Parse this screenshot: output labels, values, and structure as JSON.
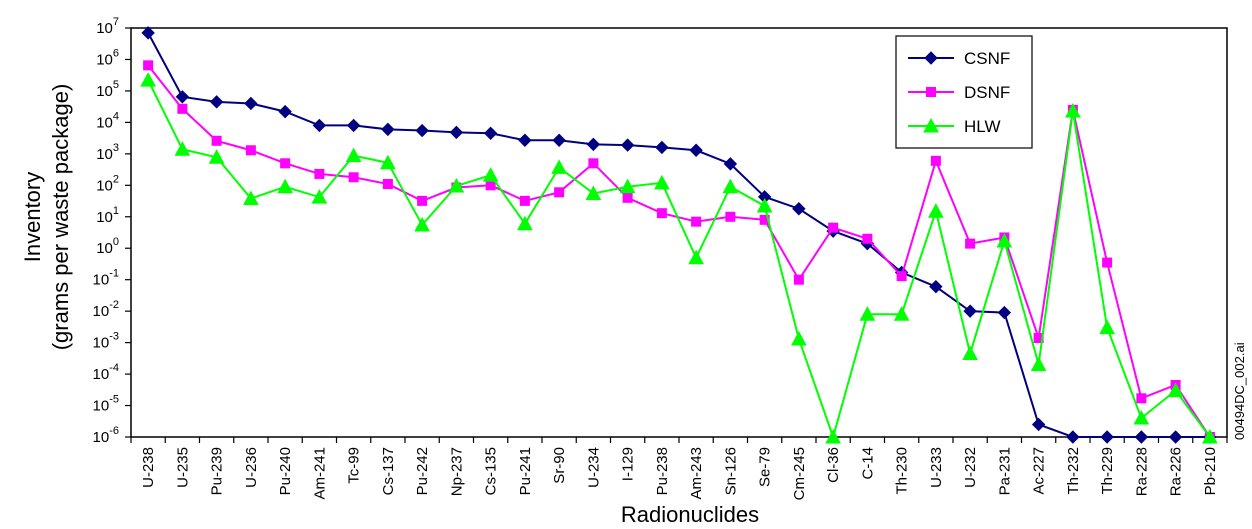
{
  "chart_data": {
    "type": "line",
    "title": "",
    "xlabel": "Radionuclides",
    "ylabel_line1": "Inventory",
    "ylabel_line2": "(grams per waste package)",
    "y_scale": "log",
    "ylim": [
      1e-06,
      10000000.0
    ],
    "y_ticks": [
      {
        "base": "10",
        "exp": "7"
      },
      {
        "base": "10",
        "exp": "6"
      },
      {
        "base": "10",
        "exp": "5"
      },
      {
        "base": "10",
        "exp": "4"
      },
      {
        "base": "10",
        "exp": "3"
      },
      {
        "base": "10",
        "exp": "2"
      },
      {
        "base": "10",
        "exp": "1"
      },
      {
        "base": "10",
        "exp": "0"
      },
      {
        "base": "10",
        "exp": "-1"
      },
      {
        "base": "10",
        "exp": "-2"
      },
      {
        "base": "10",
        "exp": "-3"
      },
      {
        "base": "10",
        "exp": "-4"
      },
      {
        "base": "10",
        "exp": "-5"
      },
      {
        "base": "10",
        "exp": "-6"
      }
    ],
    "categories": [
      "U-238",
      "U-235",
      "Pu-239",
      "U-236",
      "Pu-240",
      "Am-241",
      "Tc-99",
      "Cs-137",
      "Pu-242",
      "Np-237",
      "Cs-135",
      "Pu-241",
      "Sr-90",
      "U-234",
      "I-129",
      "Pu-238",
      "Am-243",
      "Sn-126",
      "Se-79",
      "Cm-245",
      "Cl-36",
      "C-14",
      "Th-230",
      "U-233",
      "U-232",
      "Pa-231",
      "Ac-227",
      "Th-232",
      "Th-229",
      "Ra-228",
      "Ra-226",
      "Pb-210"
    ],
    "legend_position": "top-right",
    "series": [
      {
        "name": "CSNF",
        "color": "#000080",
        "marker": "diamond",
        "values": [
          7000000.0,
          65000.0,
          45000.0,
          40000.0,
          22000.0,
          8000.0,
          8000.0,
          6000.0,
          5500.0,
          4800.0,
          4500.0,
          2700.0,
          2700.0,
          2000.0,
          1900.0,
          1600.0,
          1300.0,
          480,
          43,
          18,
          3.5,
          1.4,
          0.17,
          0.06,
          0.01,
          0.009,
          2.5e-06,
          1e-06,
          1e-06,
          1e-06,
          1e-06,
          1e-06
        ]
      },
      {
        "name": "DSNF",
        "color": "#ff00ff",
        "marker": "square",
        "values": [
          650000.0,
          27000.0,
          2600.0,
          1300.0,
          500,
          230,
          180,
          110,
          32,
          85,
          100,
          32,
          60,
          500,
          40,
          13,
          7,
          10,
          8,
          0.1,
          4.5,
          2,
          0.13,
          600,
          1.4,
          2.2,
          0.0014,
          25000.0,
          0.35,
          1.7e-05,
          4.5e-05,
          1e-06
        ]
      },
      {
        "name": "HLW",
        "color": "#00ff00",
        "marker": "triangle",
        "values": [
          220000.0,
          1400.0,
          780,
          38,
          90,
          42,
          880,
          520,
          5.5,
          95,
          210,
          6,
          370,
          55,
          90,
          120,
          0.5,
          90,
          22,
          0.0013,
          1e-06,
          0.008,
          0.008,
          15,
          0.00045,
          1.7,
          0.0002,
          23000.0,
          0.003,
          4e-06,
          3e-05,
          1e-06
        ]
      }
    ]
  },
  "side_label": "00494DC_002.ai"
}
